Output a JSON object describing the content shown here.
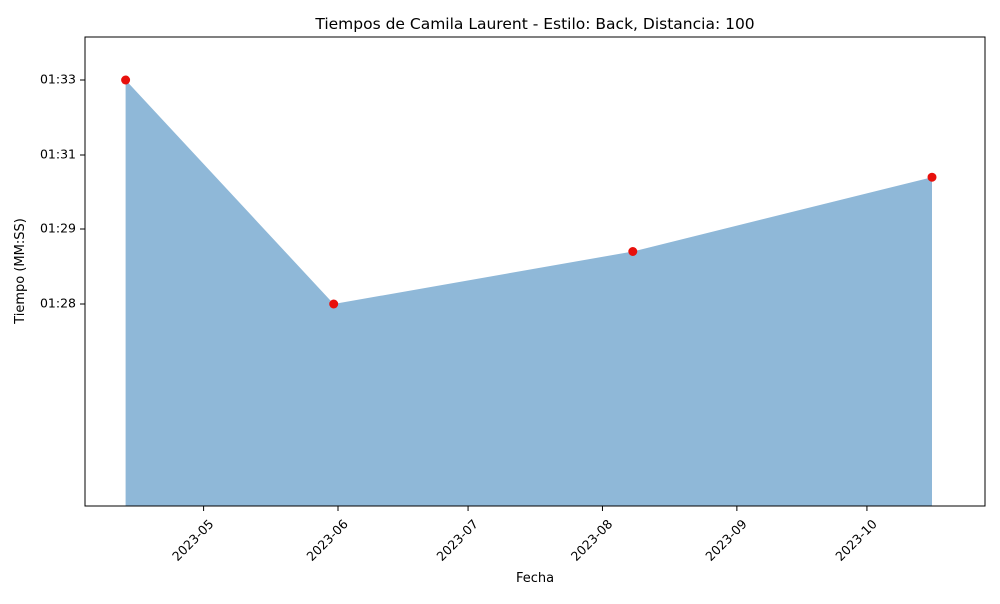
{
  "chart_data": {
    "type": "area",
    "title": "Tiempos de Camila Laurent - Estilo: Back, Distancia: 100",
    "xlabel": "Fecha",
    "ylabel": "Tiempo (MM:SS)",
    "x_ticks": [
      "2023-05",
      "2023-06",
      "2023-07",
      "2023-08",
      "2023-09",
      "2023-10"
    ],
    "y_ticks": [
      "01:28",
      "01:29",
      "01:31",
      "01:33"
    ],
    "series": [
      {
        "x": [
          "2023-04-13",
          "2023-05-31",
          "2023-08-08",
          "2023-10-16"
        ],
        "y": [
          "01:33.0",
          "01:28.0",
          "01:28.7",
          "01:30.4"
        ],
        "fill_color": "#8fb8d8",
        "marker_color": "#e8100c"
      }
    ],
    "grid": false,
    "legend": "none"
  }
}
